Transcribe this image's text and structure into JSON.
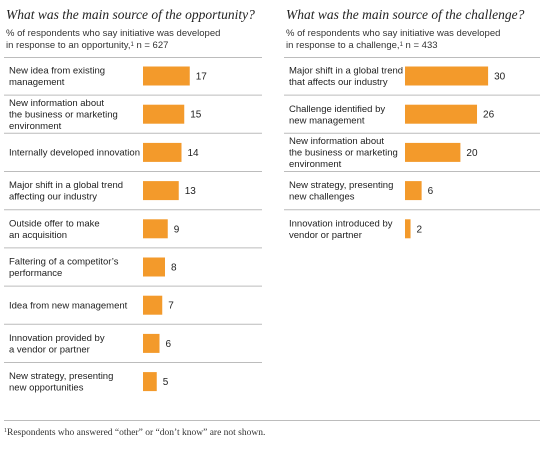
{
  "left_panel": {
    "title": "What was the main source of the opportunity?",
    "subtitle_line1": "% of respondents who say initiative was developed",
    "subtitle_line2_prefix": "in response to an opportunity,",
    "subtitle_footnote_mark": "1",
    "subtitle_line2_suffix": " n = 627"
  },
  "right_panel": {
    "title": "What was the main source of the challenge?",
    "subtitle_line1": "% of respondents who say initiative was developed",
    "subtitle_line2_prefix": "in response to a challenge,",
    "subtitle_footnote_mark": "1",
    "subtitle_line2_suffix": " n = 433"
  },
  "footnote": {
    "mark": "1",
    "text": "Respondents who answered “other” or “don’t know” are not shown."
  },
  "colors": {
    "bar": "#F39A2B",
    "rule": "#bcbcbc",
    "text": "#222222"
  },
  "chart_data": [
    {
      "type": "bar",
      "orientation": "horizontal",
      "title": "What was the main source of the opportunity?",
      "categories": [
        [
          "New idea from existing",
          "management"
        ],
        [
          "New information about",
          "the business or marketing",
          "environment"
        ],
        [
          "Internally developed innovation"
        ],
        [
          "Major shift in a global trend",
          "affecting our industry"
        ],
        [
          "Outside offer to make",
          "an acquisition"
        ],
        [
          "Faltering of a competitor’s",
          "performance"
        ],
        [
          "Idea from new management"
        ],
        [
          "Innovation provided by",
          "a vendor or partner"
        ],
        [
          "New strategy, presenting",
          "new opportunities"
        ]
      ],
      "values": [
        17,
        15,
        14,
        13,
        9,
        8,
        7,
        6,
        5
      ],
      "unit": "% of respondents"
    },
    {
      "type": "bar",
      "orientation": "horizontal",
      "title": "What was the main source of the challenge?",
      "categories": [
        [
          "Major shift in a global trend",
          "that affects our industry"
        ],
        [
          "Challenge identified by",
          "new management"
        ],
        [
          "New information about",
          "the business or marketing",
          "environment"
        ],
        [
          "New strategy, presenting",
          "new challenges"
        ],
        [
          "Innovation introduced by",
          "vendor or partner"
        ]
      ],
      "values": [
        30,
        26,
        20,
        6,
        2
      ],
      "unit": "% of respondents"
    }
  ]
}
